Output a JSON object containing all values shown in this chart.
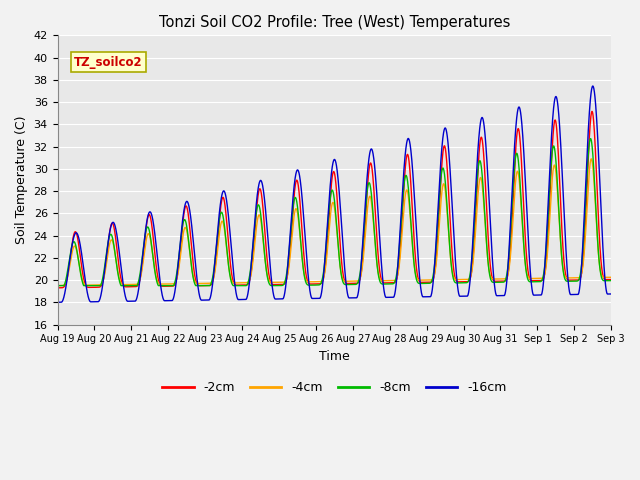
{
  "title": "Tonzi Soil CO2 Profile: Tree (West) Temperatures",
  "xlabel": "Time",
  "ylabel": "Soil Temperature (C)",
  "ylim": [
    16,
    42
  ],
  "yticks": [
    16,
    18,
    20,
    22,
    24,
    26,
    28,
    30,
    32,
    34,
    36,
    38,
    40,
    42
  ],
  "legend_label": "TZ_soilco2",
  "series_labels": [
    "-2cm",
    "-4cm",
    "-8cm",
    "-16cm"
  ],
  "series_colors": [
    "#ff0000",
    "#ffa500",
    "#00bb00",
    "#0000cc"
  ],
  "days_labels": [
    "Aug 19",
    "Aug 20",
    "Aug 21",
    "Aug 22",
    "Aug 23",
    "Aug 24",
    "Aug 25",
    "Aug 26",
    "Aug 27",
    "Aug 28",
    "Aug 29",
    "Aug 30",
    "Aug 31",
    "Sep 1",
    "Sep 2",
    "Sep 3"
  ],
  "figsize": [
    6.4,
    4.8
  ],
  "dpi": 100,
  "fig_bg": "#f2f2f2",
  "plot_bg": "#e8e8e8",
  "grid_color": "#ffffff"
}
